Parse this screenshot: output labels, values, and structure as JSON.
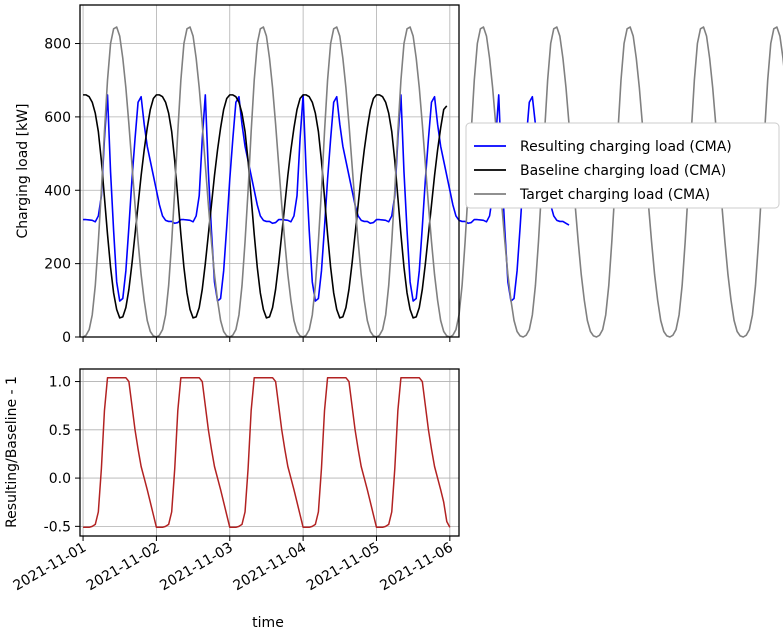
{
  "chart_data": [
    {
      "type": "line",
      "title": "",
      "xlabel": "",
      "ylabel": "Charging load [kW]",
      "xlim": [
        "2021-10-31T23:00",
        "2021-11-06T03:00"
      ],
      "ylim": [
        0,
        905
      ],
      "yticks": [
        0,
        200,
        400,
        600,
        800
      ],
      "grid": true,
      "legend": "right of plot",
      "x_start": "2021-11-01T00:00",
      "step_hours": 1,
      "series": [
        {
          "name": "Resulting charging load (CMA)",
          "color": "#0000ff",
          "values": [
            320,
            320,
            319,
            318,
            314,
            330,
            385,
            540,
            660,
            450,
            290,
            150,
            98,
            105,
            180,
            300,
            430,
            540,
            640,
            655,
            580,
            520,
            480,
            440,
            400,
            360,
            330,
            318,
            315,
            315,
            310,
            312,
            320,
            320,
            319,
            318,
            314,
            330,
            385,
            540,
            660,
            450,
            290,
            150,
            98,
            105,
            180,
            300,
            430,
            540,
            640,
            655,
            580,
            520,
            480,
            440,
            400,
            360,
            330,
            318,
            315,
            315,
            310,
            312,
            320,
            320,
            319,
            318,
            314,
            330,
            385,
            540,
            660,
            450,
            290,
            150,
            98,
            105,
            180,
            300,
            430,
            540,
            640,
            655,
            580,
            520,
            480,
            440,
            400,
            360,
            330,
            318,
            315,
            315,
            310,
            312,
            320,
            320,
            319,
            318,
            314,
            330,
            385,
            540,
            660,
            450,
            290,
            150,
            98,
            105,
            180,
            300,
            430,
            540,
            640,
            655,
            580,
            520,
            480,
            440,
            400,
            360,
            330,
            318,
            315,
            315,
            310,
            312,
            320,
            320,
            319,
            318,
            314,
            330,
            385,
            540,
            660,
            450,
            290,
            150,
            98,
            105,
            180,
            300,
            430,
            540,
            640,
            655,
            580,
            520,
            480,
            440,
            400,
            360,
            330,
            318,
            315,
            315,
            310,
            305
          ]
        },
        {
          "name": "Baseline charging load (CMA)",
          "color": "#000000",
          "values": [
            660,
            660,
            655,
            640,
            610,
            560,
            480,
            380,
            280,
            190,
            120,
            75,
            52,
            55,
            80,
            130,
            200,
            280,
            360,
            440,
            510,
            570,
            620,
            650,
            660,
            660,
            655,
            640,
            610,
            560,
            480,
            380,
            280,
            190,
            120,
            75,
            52,
            55,
            80,
            130,
            200,
            280,
            360,
            440,
            510,
            570,
            620,
            650,
            660,
            660,
            655,
            640,
            610,
            560,
            480,
            380,
            280,
            190,
            120,
            75,
            52,
            55,
            80,
            130,
            200,
            280,
            360,
            440,
            510,
            570,
            620,
            650,
            660,
            660,
            655,
            640,
            610,
            560,
            480,
            380,
            280,
            190,
            120,
            75,
            52,
            55,
            80,
            130,
            200,
            280,
            360,
            440,
            510,
            570,
            620,
            650,
            660,
            660,
            655,
            640,
            610,
            560,
            480,
            380,
            280,
            190,
            120,
            75,
            52,
            55,
            80,
            130,
            200,
            280,
            360,
            440,
            510,
            570,
            620,
            630
          ]
        },
        {
          "name": "Target charging load (CMA)",
          "color": "#808080",
          "values": [
            0,
            5,
            20,
            60,
            140,
            260,
            400,
            560,
            700,
            800,
            840,
            845,
            820,
            760,
            680,
            580,
            470,
            360,
            260,
            170,
            100,
            45,
            15,
            3,
            0,
            5,
            20,
            60,
            140,
            260,
            400,
            560,
            700,
            800,
            840,
            845,
            820,
            760,
            680,
            580,
            470,
            360,
            260,
            170,
            100,
            45,
            15,
            3,
            0,
            5,
            20,
            60,
            140,
            260,
            400,
            560,
            700,
            800,
            840,
            845,
            820,
            760,
            680,
            580,
            470,
            360,
            260,
            170,
            100,
            45,
            15,
            3,
            0,
            5,
            20,
            60,
            140,
            260,
            400,
            560,
            700,
            800,
            840,
            845,
            820,
            760,
            680,
            580,
            470,
            360,
            260,
            170,
            100,
            45,
            15,
            3,
            0,
            5,
            20,
            60,
            140,
            260,
            400,
            560,
            700,
            800,
            840,
            845,
            820,
            760,
            680,
            580,
            470,
            360,
            260,
            170,
            100,
            45,
            15,
            3,
            0,
            5,
            20,
            60,
            140,
            260,
            400,
            560,
            700,
            800,
            840,
            845,
            820,
            760,
            680,
            580,
            470,
            360,
            260,
            170,
            100,
            45,
            15,
            3,
            0,
            5,
            20,
            60,
            140,
            260,
            400,
            560,
            700,
            800,
            840,
            845,
            820,
            760,
            680,
            580,
            470,
            360,
            260,
            170,
            100,
            45,
            15,
            3,
            0,
            5,
            20,
            60,
            140,
            260,
            400,
            560,
            700,
            800,
            840,
            845,
            820,
            760,
            680,
            580,
            470,
            360,
            260,
            170,
            100,
            45,
            15,
            3,
            0,
            5,
            20,
            60,
            140,
            260,
            400,
            560,
            700,
            800,
            840,
            845,
            820,
            760,
            680,
            580,
            470,
            360,
            260,
            170,
            100,
            45,
            15,
            3,
            0,
            5,
            20,
            60,
            140,
            260,
            400,
            560,
            700,
            800,
            840,
            845,
            820,
            760,
            680,
            580,
            470,
            360,
            260,
            170,
            100,
            45,
            15,
            3,
            0,
            5,
            20,
            60,
            140,
            260,
            400,
            560,
            700,
            800,
            840,
            845,
            820,
            760,
            680,
            580,
            470,
            360,
            260,
            170,
            100,
            45,
            35
          ]
        }
      ]
    },
    {
      "type": "line",
      "title": "",
      "xlabel": "time",
      "ylabel": "Resulting/Baseline - 1",
      "xlim": [
        "2021-10-31T23:00",
        "2021-11-06T03:00"
      ],
      "ylim": [
        -0.6,
        1.13
      ],
      "yticks": [
        -0.5,
        0.0,
        0.5,
        1.0
      ],
      "grid": true,
      "x_start": "2021-11-01T00:00",
      "step_hours": 1,
      "series": [
        {
          "color": "#b22222",
          "values": [
            -0.51,
            -0.51,
            -0.51,
            -0.5,
            -0.48,
            -0.35,
            0.1,
            0.7,
            1.04,
            1.04,
            1.04,
            1.04,
            1.04,
            1.04,
            1.04,
            1.0,
            0.75,
            0.5,
            0.3,
            0.12,
            0.0,
            -0.12,
            -0.25,
            -0.38,
            -0.51,
            -0.51,
            -0.51,
            -0.5,
            -0.48,
            -0.35,
            0.1,
            0.7,
            1.04,
            1.04,
            1.04,
            1.04,
            1.04,
            1.04,
            1.04,
            1.0,
            0.75,
            0.5,
            0.3,
            0.12,
            0.0,
            -0.12,
            -0.25,
            -0.38,
            -0.51,
            -0.51,
            -0.51,
            -0.5,
            -0.48,
            -0.35,
            0.1,
            0.7,
            1.04,
            1.04,
            1.04,
            1.04,
            1.04,
            1.04,
            1.04,
            1.0,
            0.75,
            0.5,
            0.3,
            0.12,
            0.0,
            -0.12,
            -0.25,
            -0.38,
            -0.51,
            -0.51,
            -0.51,
            -0.5,
            -0.48,
            -0.35,
            0.1,
            0.7,
            1.04,
            1.04,
            1.04,
            1.04,
            1.04,
            1.04,
            1.04,
            1.0,
            0.75,
            0.5,
            0.3,
            0.12,
            0.0,
            -0.12,
            -0.25,
            -0.38,
            -0.51,
            -0.51,
            -0.51,
            -0.5,
            -0.48,
            -0.35,
            0.1,
            0.7,
            1.04,
            1.04,
            1.04,
            1.04,
            1.04,
            1.04,
            1.04,
            1.0,
            0.75,
            0.5,
            0.3,
            0.12,
            0.0,
            -0.12,
            -0.25,
            -0.45,
            -0.51
          ]
        }
      ]
    }
  ],
  "x_ticks": [
    "2021-11-01",
    "2021-11-02",
    "2021-11-03",
    "2021-11-04",
    "2021-11-05",
    "2021-11-06"
  ]
}
